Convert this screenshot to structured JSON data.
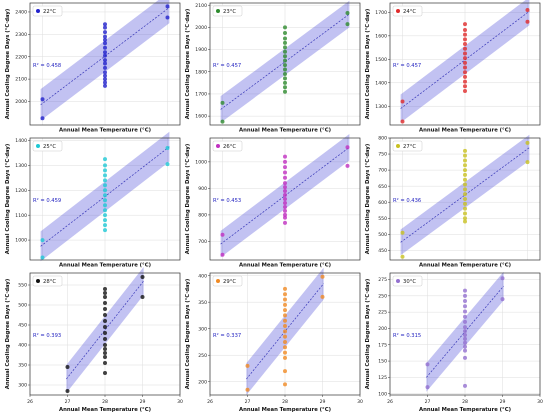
{
  "figure": {
    "x_axis_label": "Annual Mean Temperature (°C)",
    "y_axis_label": "Annual Cooling Degree Days (°C·day)"
  },
  "chart_data": [
    {
      "type": "scatter",
      "legend": "22°C",
      "color": "#2222cc",
      "r2_label": "R² = 0.458",
      "x_ticks": [],
      "xlim": [
        26.8,
        29.2
      ],
      "y_ticks": [
        2000,
        2100,
        2200,
        2300,
        2400
      ],
      "ylim": [
        1895,
        2440
      ],
      "fit": [
        [
          26.97,
          1985
        ],
        [
          29.03,
          2420
        ]
      ],
      "band": 70,
      "points": [
        [
          27,
          2010
        ],
        [
          27,
          1925
        ],
        [
          28,
          2345
        ],
        [
          28,
          2330
        ],
        [
          28,
          2310
        ],
        [
          28,
          2290
        ],
        [
          28,
          2275
        ],
        [
          28,
          2260
        ],
        [
          28,
          2240
        ],
        [
          28,
          2220
        ],
        [
          28,
          2205
        ],
        [
          28,
          2185
        ],
        [
          28,
          2170
        ],
        [
          28,
          2150
        ],
        [
          28,
          2130
        ],
        [
          28,
          2115
        ],
        [
          28,
          2100
        ],
        [
          28,
          2085
        ],
        [
          28,
          2070
        ],
        [
          29,
          2425
        ],
        [
          29,
          2375
        ]
      ]
    },
    {
      "type": "scatter",
      "legend": "23°C",
      "color": "#2e8b2e",
      "r2_label": "R² = 0.457",
      "x_ticks": [],
      "xlim": [
        26.8,
        29.2
      ],
      "y_ticks": [
        1600,
        1700,
        1800,
        1900,
        2000,
        2100
      ],
      "ylim": [
        1560,
        2110
      ],
      "fit": [
        [
          26.97,
          1630
        ],
        [
          29.03,
          2060
        ]
      ],
      "band": 60,
      "points": [
        [
          27,
          1660
        ],
        [
          27,
          1575
        ],
        [
          28,
          2000
        ],
        [
          28,
          1975
        ],
        [
          28,
          1950
        ],
        [
          28,
          1930
        ],
        [
          28,
          1910
        ],
        [
          28,
          1890
        ],
        [
          28,
          1870
        ],
        [
          28,
          1850
        ],
        [
          28,
          1830
        ],
        [
          28,
          1810
        ],
        [
          28,
          1790
        ],
        [
          28,
          1770
        ],
        [
          28,
          1750
        ],
        [
          28,
          1730
        ],
        [
          28,
          1710
        ],
        [
          29,
          2065
        ],
        [
          29,
          2015
        ]
      ]
    },
    {
      "type": "scatter",
      "legend": "24°C",
      "color": "#e02b2b",
      "r2_label": "R² = 0.457",
      "x_ticks": [],
      "xlim": [
        26.8,
        29.2
      ],
      "y_ticks": [
        1300,
        1400,
        1500,
        1600,
        1700
      ],
      "ylim": [
        1220,
        1740
      ],
      "fit": [
        [
          26.97,
          1290
        ],
        [
          29.03,
          1705
        ]
      ],
      "band": 60,
      "points": [
        [
          27,
          1320
        ],
        [
          27,
          1235
        ],
        [
          28,
          1650
        ],
        [
          28,
          1625
        ],
        [
          28,
          1605
        ],
        [
          28,
          1585
        ],
        [
          28,
          1565
        ],
        [
          28,
          1545
        ],
        [
          28,
          1525
        ],
        [
          28,
          1505
        ],
        [
          28,
          1485
        ],
        [
          28,
          1465
        ],
        [
          28,
          1445
        ],
        [
          28,
          1425
        ],
        [
          28,
          1405
        ],
        [
          28,
          1385
        ],
        [
          28,
          1365
        ],
        [
          29,
          1710
        ],
        [
          29,
          1660
        ]
      ]
    },
    {
      "type": "scatter",
      "legend": "25°C",
      "color": "#1ec8d4",
      "r2_label": "R² = 0.459",
      "x_ticks": [],
      "xlim": [
        26.8,
        29.2
      ],
      "y_ticks": [
        1000,
        1100,
        1200,
        1300,
        1400
      ],
      "ylim": [
        920,
        1410
      ],
      "fit": [
        [
          26.97,
          975
        ],
        [
          29.03,
          1375
        ]
      ],
      "band": 60,
      "points": [
        [
          27,
          1000
        ],
        [
          27,
          930
        ],
        [
          28,
          1325
        ],
        [
          28,
          1300
        ],
        [
          28,
          1280
        ],
        [
          28,
          1260
        ],
        [
          28,
          1240
        ],
        [
          28,
          1220
        ],
        [
          28,
          1200
        ],
        [
          28,
          1180
        ],
        [
          28,
          1160
        ],
        [
          28,
          1140
        ],
        [
          28,
          1120
        ],
        [
          28,
          1100
        ],
        [
          28,
          1080
        ],
        [
          28,
          1060
        ],
        [
          28,
          1040
        ],
        [
          29,
          1370
        ],
        [
          29,
          1305
        ]
      ]
    },
    {
      "type": "scatter",
      "legend": "26°C",
      "color": "#c030c0",
      "r2_label": "R² = 0.453",
      "x_ticks": [],
      "xlim": [
        26.8,
        29.2
      ],
      "y_ticks": [
        700,
        800,
        900,
        1000
      ],
      "ylim": [
        630,
        1090
      ],
      "fit": [
        [
          26.97,
          690
        ],
        [
          29.03,
          1055
        ]
      ],
      "band": 50,
      "points": [
        [
          27,
          725
        ],
        [
          27,
          650
        ],
        [
          28,
          1020
        ],
        [
          28,
          1000
        ],
        [
          28,
          980
        ],
        [
          28,
          960
        ],
        [
          28,
          940
        ],
        [
          28,
          920
        ],
        [
          28,
          905
        ],
        [
          28,
          890
        ],
        [
          28,
          875
        ],
        [
          28,
          860
        ],
        [
          28,
          845
        ],
        [
          28,
          830
        ],
        [
          28,
          815
        ],
        [
          28,
          800
        ],
        [
          28,
          790
        ],
        [
          28,
          770
        ],
        [
          29,
          1055
        ],
        [
          29,
          985
        ]
      ]
    },
    {
      "type": "scatter",
      "legend": "27°C",
      "color": "#c8c020",
      "r2_label": "R² = 0.436",
      "x_ticks": [],
      "xlim": [
        26.8,
        29.2
      ],
      "y_ticks": [
        450,
        500,
        550,
        600,
        650,
        700,
        750,
        800
      ],
      "ylim": [
        420,
        800
      ],
      "fit": [
        [
          26.97,
          475
        ],
        [
          29.03,
          770
        ]
      ],
      "band": 40,
      "points": [
        [
          27,
          505
        ],
        [
          27,
          430
        ],
        [
          28,
          760
        ],
        [
          28,
          745
        ],
        [
          28,
          730
        ],
        [
          28,
          715
        ],
        [
          28,
          700
        ],
        [
          28,
          685
        ],
        [
          28,
          670
        ],
        [
          28,
          655
        ],
        [
          28,
          640
        ],
        [
          28,
          625
        ],
        [
          28,
          610
        ],
        [
          28,
          595
        ],
        [
          28,
          580
        ],
        [
          28,
          565
        ],
        [
          28,
          550
        ],
        [
          28,
          540
        ],
        [
          29,
          785
        ],
        [
          29,
          725
        ]
      ]
    },
    {
      "type": "scatter",
      "legend": "28°C",
      "color": "#111111",
      "r2_label": "R² = 0.393",
      "x_ticks": [
        26,
        27,
        28,
        29,
        30
      ],
      "xlim": [
        26,
        30
      ],
      "y_ticks": [
        300,
        350,
        400,
        450,
        500,
        550
      ],
      "ylim": [
        275,
        580
      ],
      "fit": [
        [
          26.97,
          315
        ],
        [
          29.03,
          560
        ]
      ],
      "band": 35,
      "points": [
        [
          27,
          345
        ],
        [
          27,
          285
        ],
        [
          28,
          540
        ],
        [
          28,
          530
        ],
        [
          28,
          520
        ],
        [
          28,
          505
        ],
        [
          28,
          490
        ],
        [
          28,
          475
        ],
        [
          28,
          460
        ],
        [
          28,
          445
        ],
        [
          28,
          430
        ],
        [
          28,
          415
        ],
        [
          28,
          400
        ],
        [
          28,
          390
        ],
        [
          28,
          380
        ],
        [
          28,
          370
        ],
        [
          28,
          355
        ],
        [
          28,
          330
        ],
        [
          29,
          570
        ],
        [
          29,
          520
        ]
      ]
    },
    {
      "type": "scatter",
      "legend": "29°C",
      "color": "#f08a24",
      "r2_label": "R² = 0.337",
      "x_ticks": [
        26,
        27,
        28,
        29,
        30
      ],
      "xlim": [
        26,
        30
      ],
      "y_ticks": [
        200,
        250,
        300,
        350,
        400
      ],
      "ylim": [
        175,
        405
      ],
      "fit": [
        [
          26.97,
          205
        ],
        [
          29.03,
          385
        ]
      ],
      "band": 30,
      "points": [
        [
          27,
          230
        ],
        [
          27,
          185
        ],
        [
          28,
          375
        ],
        [
          28,
          365
        ],
        [
          28,
          355
        ],
        [
          28,
          345
        ],
        [
          28,
          335
        ],
        [
          28,
          325
        ],
        [
          28,
          315
        ],
        [
          28,
          305
        ],
        [
          28,
          295
        ],
        [
          28,
          285
        ],
        [
          28,
          275
        ],
        [
          28,
          265
        ],
        [
          28,
          255
        ],
        [
          28,
          245
        ],
        [
          28,
          220
        ],
        [
          28,
          195
        ],
        [
          29,
          398
        ],
        [
          29,
          360
        ]
      ]
    },
    {
      "type": "scatter",
      "legend": "30°C",
      "color": "#9370cf",
      "r2_label": "R² = 0.315",
      "x_ticks": [
        26,
        27,
        28,
        29,
        30
      ],
      "xlim": [
        26,
        30
      ],
      "y_ticks": [
        100,
        125,
        150,
        175,
        200,
        225,
        250,
        275
      ],
      "ylim": [
        98,
        285
      ],
      "fit": [
        [
          26.97,
          125
        ],
        [
          29.03,
          265
        ]
      ],
      "band": 22,
      "points": [
        [
          27,
          145
        ],
        [
          27,
          110
        ],
        [
          28,
          258
        ],
        [
          28,
          250
        ],
        [
          28,
          242
        ],
        [
          28,
          234
        ],
        [
          28,
          226
        ],
        [
          28,
          218
        ],
        [
          28,
          210
        ],
        [
          28,
          202
        ],
        [
          28,
          196
        ],
        [
          28,
          190
        ],
        [
          28,
          184
        ],
        [
          28,
          178
        ],
        [
          28,
          172
        ],
        [
          28,
          166
        ],
        [
          28,
          155
        ],
        [
          28,
          112
        ],
        [
          29,
          277
        ],
        [
          29,
          245
        ]
      ]
    }
  ]
}
